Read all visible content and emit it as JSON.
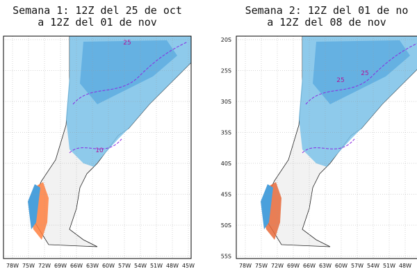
{
  "panels": [
    {
      "title": [
        "Semana 1: 12Z del 25 de oct",
        "a 12Z del 01 de nov"
      ],
      "x_labels": [
        "78W",
        "75W",
        "72W",
        "69W",
        "66W",
        "63W",
        "60W",
        "57W",
        "54W",
        "51W",
        "48W",
        "45W"
      ],
      "y_labels": [],
      "contour_labels": [
        "25",
        "10"
      ]
    },
    {
      "title": [
        "Semana 2: 12Z del 01 de no",
        "a 12Z del 08 de nov"
      ],
      "x_labels": [
        "78W",
        "75W",
        "72W",
        "69W",
        "66W",
        "63W",
        "60W",
        "57W",
        "54W",
        "51W",
        "48W"
      ],
      "y_labels": [
        "20S",
        "25S",
        "30S",
        "35S",
        "40S",
        "45S",
        "50S",
        "55S"
      ],
      "contour_labels": [
        "25",
        "25"
      ]
    }
  ]
}
